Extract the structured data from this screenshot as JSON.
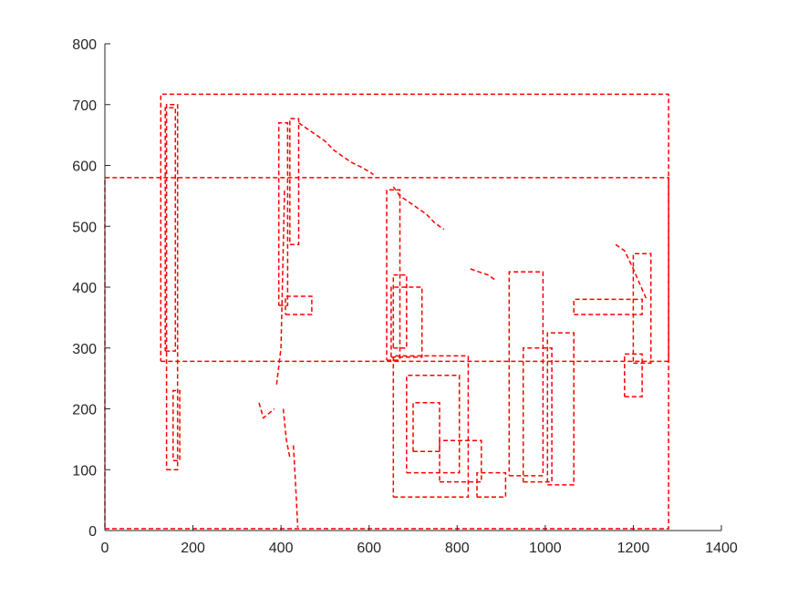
{
  "chart_data": {
    "type": "line",
    "title": "",
    "xlabel": "",
    "ylabel": "",
    "xlim": [
      0,
      1400
    ],
    "ylim": [
      0,
      800
    ],
    "grid": false,
    "legend": "none",
    "line_style": "dashed",
    "color": "#ff0000",
    "x_ticks": [
      0,
      200,
      400,
      600,
      800,
      1000,
      1200,
      1400
    ],
    "x_tick_labels": [
      "0",
      "200",
      "400",
      "600",
      "800",
      "1000",
      "1200",
      "1400"
    ],
    "y_ticks": [
      0,
      100,
      200,
      300,
      400,
      500,
      600,
      700,
      800
    ],
    "y_tick_labels": [
      "0",
      "100",
      "200",
      "300",
      "400",
      "500",
      "600",
      "700",
      "800"
    ],
    "series": [
      {
        "type": "rect",
        "x": [
          0,
          1280
        ],
        "y": [
          3,
          580
        ]
      },
      {
        "type": "rect",
        "x": [
          127,
          1280
        ],
        "y": [
          278,
          717
        ]
      },
      {
        "type": "rect",
        "x": [
          137,
          160
        ],
        "y": [
          295,
          695
        ]
      },
      {
        "type": "rect",
        "x": [
          155,
          170
        ],
        "y": [
          115,
          230
        ]
      },
      {
        "type": "rect",
        "x": [
          140,
          165
        ],
        "y": [
          100,
          700
        ]
      },
      {
        "type": "rect",
        "x": [
          395,
          415
        ],
        "y": [
          370,
          670
        ]
      },
      {
        "type": "rect",
        "x": [
          420,
          440
        ],
        "y": [
          470,
          677
        ]
      },
      {
        "type": "rect",
        "x": [
          410,
          470
        ],
        "y": [
          355,
          385
        ]
      },
      {
        "type": "rect",
        "x": [
          640,
          670
        ],
        "y": [
          280,
          560
        ]
      },
      {
        "type": "rect",
        "x": [
          655,
          685
        ],
        "y": [
          300,
          420
        ]
      },
      {
        "type": "rect",
        "x": [
          650,
          720
        ],
        "y": [
          285,
          400
        ]
      },
      {
        "type": "rect",
        "x": [
          655,
          825
        ],
        "y": [
          55,
          287
        ]
      },
      {
        "type": "rect",
        "x": [
          685,
          805
        ],
        "y": [
          95,
          255
        ]
      },
      {
        "type": "rect",
        "x": [
          700,
          760
        ],
        "y": [
          130,
          210
        ]
      },
      {
        "type": "rect",
        "x": [
          760,
          855
        ],
        "y": [
          80,
          148
        ]
      },
      {
        "type": "rect",
        "x": [
          845,
          910
        ],
        "y": [
          55,
          95
        ]
      },
      {
        "type": "rect",
        "x": [
          918,
          995
        ],
        "y": [
          90,
          425
        ]
      },
      {
        "type": "rect",
        "x": [
          1005,
          1065
        ],
        "y": [
          75,
          325
        ]
      },
      {
        "type": "rect",
        "x": [
          1065,
          1220
        ],
        "y": [
          355,
          380
        ]
      },
      {
        "type": "rect",
        "x": [
          1180,
          1220
        ],
        "y": [
          220,
          290
        ]
      },
      {
        "type": "rect",
        "x": [
          1200,
          1240
        ],
        "y": [
          275,
          455
        ]
      },
      {
        "type": "rect",
        "x": [
          950,
          1015
        ],
        "y": [
          80,
          300
        ]
      },
      {
        "type": "polyline",
        "x": [
          440,
          460,
          480,
          500,
          520,
          540,
          560,
          580,
          600,
          610
        ],
        "y": [
          670,
          660,
          650,
          640,
          625,
          615,
          605,
          598,
          590,
          585
        ]
      },
      {
        "type": "polyline",
        "x": [
          655,
          670,
          690,
          710,
          730,
          750,
          770
        ],
        "y": [
          565,
          550,
          540,
          530,
          520,
          505,
          495
        ]
      },
      {
        "type": "polyline",
        "x": [
          390,
          400,
          408
        ],
        "y": [
          240,
          300,
          560
        ]
      },
      {
        "type": "polyline",
        "x": [
          405,
          412,
          420
        ],
        "y": [
          200,
          150,
          120
        ]
      },
      {
        "type": "polyline",
        "x": [
          428,
          432,
          435,
          438
        ],
        "y": [
          140,
          90,
          50,
          5
        ]
      },
      {
        "type": "polyline",
        "x": [
          350,
          360,
          385
        ],
        "y": [
          210,
          185,
          200
        ]
      },
      {
        "type": "polyline",
        "x": [
          1160,
          1180,
          1200,
          1230
        ],
        "y": [
          470,
          460,
          430,
          380
        ]
      },
      {
        "type": "polyline",
        "x": [
          830,
          850,
          870,
          890
        ],
        "y": [
          430,
          425,
          420,
          410
        ]
      }
    ]
  }
}
